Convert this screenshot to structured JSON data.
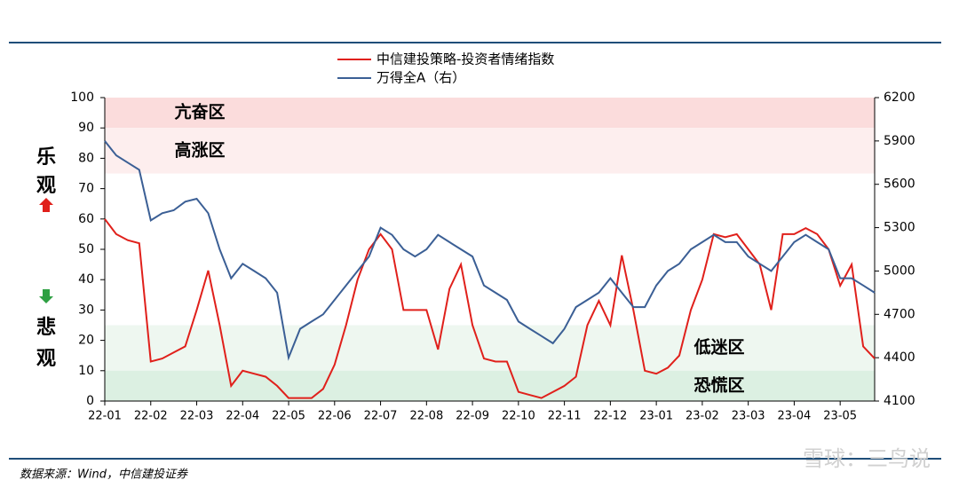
{
  "chart_data": {
    "type": "line",
    "categories": [
      "22-01",
      null,
      null,
      null,
      "22-02",
      null,
      null,
      null,
      "22-03",
      null,
      null,
      null,
      "22-04",
      null,
      null,
      null,
      "22-05",
      null,
      null,
      null,
      "22-06",
      null,
      null,
      null,
      "22-07",
      null,
      null,
      null,
      "22-08",
      null,
      null,
      null,
      "22-09",
      null,
      null,
      null,
      "22-10",
      null,
      null,
      null,
      "22-11",
      null,
      null,
      null,
      "22-12",
      null,
      null,
      null,
      "23-01",
      null,
      null,
      null,
      "23-02",
      null,
      null,
      null,
      "23-03",
      null,
      null,
      null,
      "23-04",
      null,
      null,
      null,
      "23-05",
      null,
      null,
      null
    ],
    "series": [
      {
        "name": "中信建投策略-投资者情绪指数",
        "color": "#e0201b",
        "axis": "y",
        "values": [
          60,
          55,
          53,
          52,
          13,
          14,
          16,
          18,
          30,
          43,
          25,
          5,
          10,
          9,
          8,
          5,
          1,
          1,
          1,
          4,
          12,
          25,
          40,
          50,
          55,
          50,
          30,
          30,
          30,
          17,
          37,
          45,
          25,
          14,
          13,
          13,
          3,
          2,
          1,
          3,
          5,
          8,
          25,
          33,
          25,
          48,
          30,
          10,
          9,
          11,
          15,
          30,
          40,
          55,
          54,
          55,
          50,
          45,
          30,
          55,
          55,
          57,
          55,
          50,
          38,
          45,
          18,
          14
        ]
      },
      {
        "name": "万得全A（右）",
        "color": "#3b5f95",
        "axis": "y2",
        "values": [
          5900,
          5800,
          5750,
          5700,
          5350,
          5400,
          5420,
          5480,
          5500,
          5400,
          5150,
          4950,
          5050,
          5000,
          4950,
          4850,
          4400,
          4600,
          4650,
          4700,
          4800,
          4900,
          5000,
          5100,
          5300,
          5250,
          5150,
          5100,
          5150,
          5250,
          5200,
          5150,
          5100,
          4900,
          4850,
          4800,
          4650,
          4600,
          4550,
          4500,
          4600,
          4750,
          4800,
          4850,
          4950,
          4850,
          4750,
          4750,
          4900,
          5000,
          5050,
          5150,
          5200,
          5250,
          5200,
          5200,
          5100,
          5050,
          5000,
          5100,
          5200,
          5250,
          5200,
          5150,
          4950,
          4950,
          4900,
          4850
        ]
      }
    ],
    "ylim": [
      0,
      100
    ],
    "yticks": [
      0,
      10,
      20,
      30,
      40,
      50,
      60,
      70,
      80,
      90,
      100
    ],
    "y2lim": [
      4100,
      6200
    ],
    "y2ticks": [
      4100,
      4400,
      4700,
      5000,
      5300,
      5600,
      5900,
      6200
    ],
    "zones": [
      {
        "name": "亢奋区",
        "from": 90,
        "to": 100,
        "color": "#fbdcdc"
      },
      {
        "name": "高涨区",
        "from": 75,
        "to": 90,
        "color": "#fdeeee"
      },
      {
        "name": "低迷区",
        "from": 10,
        "to": 25,
        "color": "#eef7f0"
      },
      {
        "name": "恐慌区",
        "from": 0,
        "to": 10,
        "color": "#dcf0e2"
      }
    ],
    "side_labels": [
      "乐",
      "观",
      "悲",
      "观"
    ],
    "source": "数据来源：Wind，中信建投证券",
    "watermark": "雪球：三鸟说"
  }
}
